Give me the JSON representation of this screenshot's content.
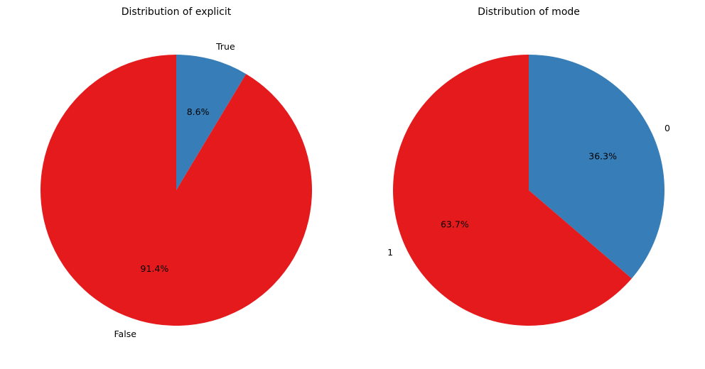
{
  "chart_data": [
    {
      "type": "pie",
      "title": "Distribution of explicit",
      "start_angle_deg": 90,
      "direction": "clockwise",
      "slices": [
        {
          "label": "True",
          "value": 8.6,
          "pct_label": "8.6%",
          "color": "#377eb8"
        },
        {
          "label": "False",
          "value": 91.4,
          "pct_label": "91.4%",
          "color": "#e41a1c"
        }
      ]
    },
    {
      "type": "pie",
      "title": "Distribution of mode",
      "start_angle_deg": 90,
      "direction": "clockwise",
      "slices": [
        {
          "label": "0",
          "value": 36.3,
          "pct_label": "36.3%",
          "color": "#377eb8"
        },
        {
          "label": "1",
          "value": 63.7,
          "pct_label": "63.7%",
          "color": "#e41a1c"
        }
      ]
    }
  ]
}
